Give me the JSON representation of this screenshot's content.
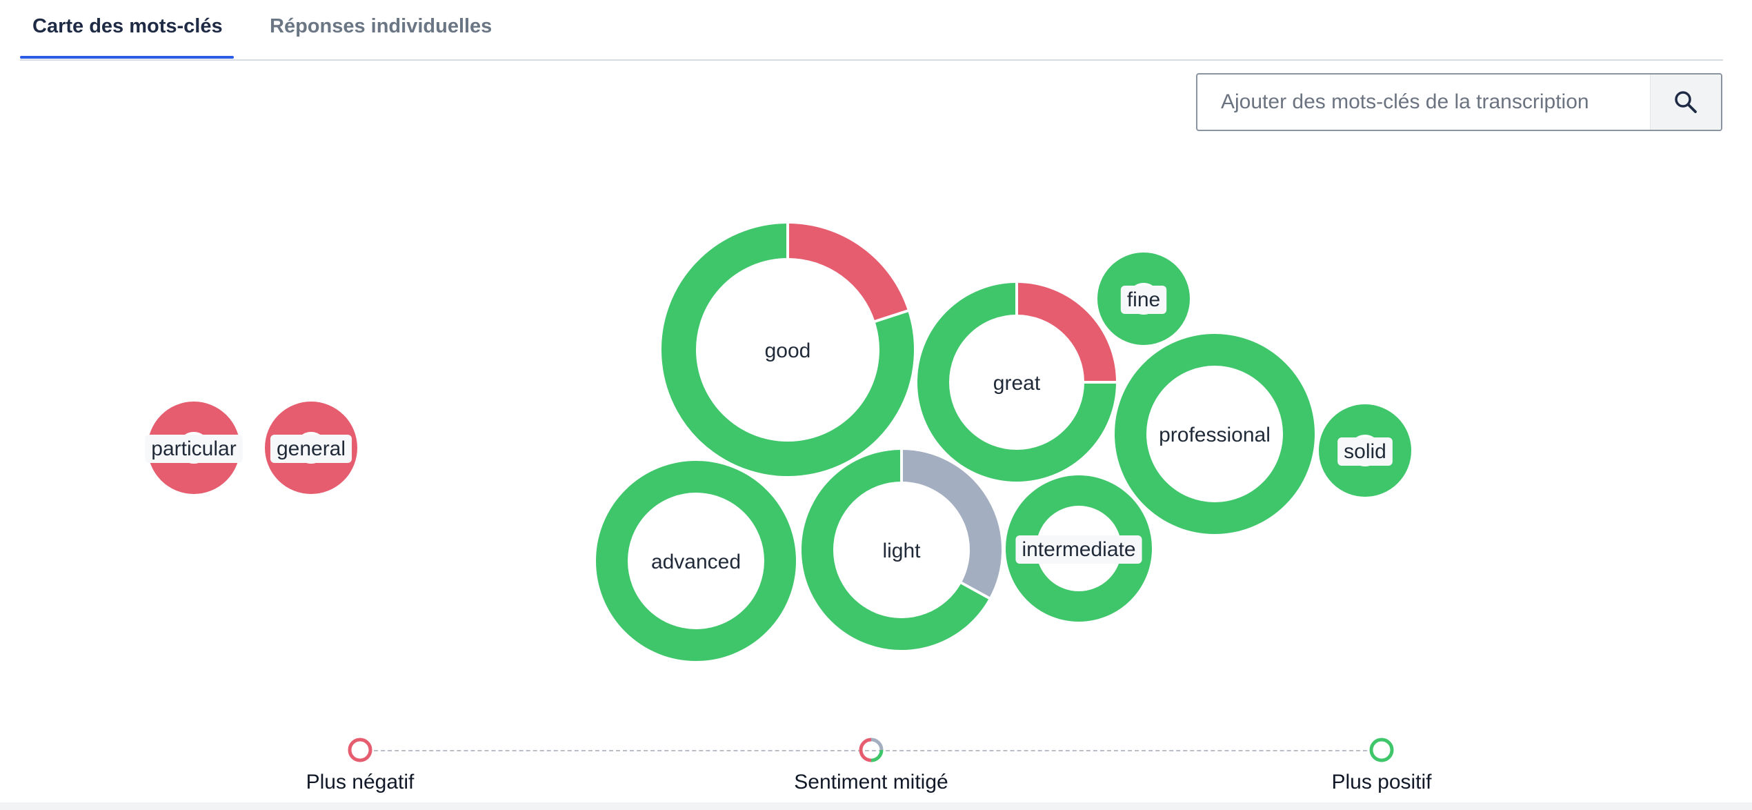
{
  "tabs": [
    {
      "label": "Carte des mots-clés",
      "active": true
    },
    {
      "label": "Réponses individuelles",
      "active": false
    }
  ],
  "search": {
    "placeholder": "Ajouter des mots-clés de la transcription",
    "value": "",
    "icon": "search-icon"
  },
  "colors": {
    "positive": "#3fc66a",
    "negative": "#e55d6f",
    "mixed": "#a3aec0",
    "accent": "#2b5ce6"
  },
  "keywords": [
    {
      "word": "good",
      "sentiment": {
        "positive": 0.8,
        "negative": 0.2,
        "mixed": 0
      }
    },
    {
      "word": "great",
      "sentiment": {
        "positive": 0.75,
        "negative": 0.25,
        "mixed": 0
      }
    },
    {
      "word": "fine",
      "sentiment": {
        "positive": 1,
        "negative": 0,
        "mixed": 0
      }
    },
    {
      "word": "professional",
      "sentiment": {
        "positive": 1,
        "negative": 0,
        "mixed": 0
      }
    },
    {
      "word": "solid",
      "sentiment": {
        "positive": 1,
        "negative": 0,
        "mixed": 0
      }
    },
    {
      "word": "particular",
      "sentiment": {
        "positive": 0,
        "negative": 1,
        "mixed": 0
      }
    },
    {
      "word": "general",
      "sentiment": {
        "positive": 0,
        "negative": 1,
        "mixed": 0
      }
    },
    {
      "word": "advanced",
      "sentiment": {
        "positive": 1,
        "negative": 0,
        "mixed": 0
      }
    },
    {
      "word": "light",
      "sentiment": {
        "positive": 0.67,
        "negative": 0,
        "mixed": 0.33
      }
    },
    {
      "word": "intermediate",
      "sentiment": {
        "positive": 1,
        "negative": 0,
        "mixed": 0
      }
    }
  ],
  "legend": {
    "negative": "Plus négatif",
    "mixed": "Sentiment mitigé",
    "positive": "Plus positif"
  }
}
